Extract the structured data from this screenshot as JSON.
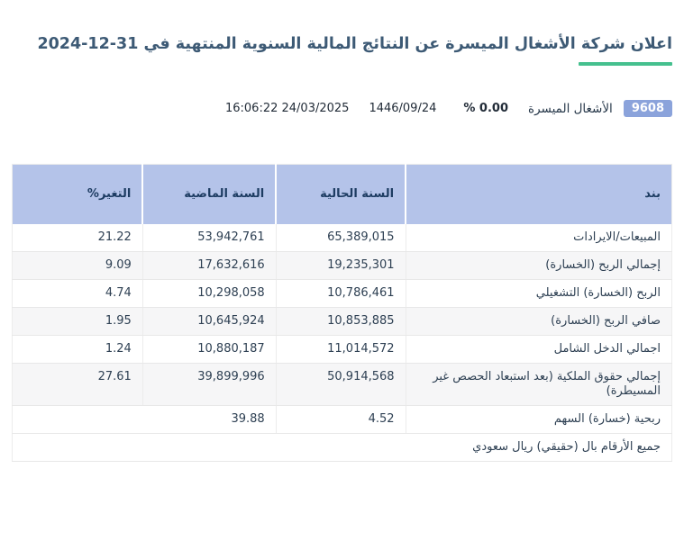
{
  "header": {
    "title": "اعلان شركة الأشغال الميسرة عن النتائج المالية السنوية المنتهية في 31-12-2024"
  },
  "info_bar": {
    "symbol": "9608",
    "company": "الأشغال الميسرة",
    "change_percent": "% 0.00",
    "hijri_date": "1446/09/24",
    "datetime": "16:06:22 24/03/2025"
  },
  "table": {
    "columns": {
      "item": "بند",
      "current_year": "السنة الحالية",
      "previous_year": "السنة الماضية",
      "change_percent": "التغير%"
    },
    "rows": [
      {
        "item": "المبيعات/الايرادات",
        "current": "65,389,015",
        "previous": "53,942,761",
        "change": "21.22"
      },
      {
        "item": "إجمالي الربح (الخسارة)",
        "current": "19,235,301",
        "previous": "17,632,616",
        "change": "9.09"
      },
      {
        "item": "الربح (الخسارة) التشغيلي",
        "current": "10,786,461",
        "previous": "10,298,058",
        "change": "4.74"
      },
      {
        "item": "صافي الربح (الخسارة)",
        "current": "10,853,885",
        "previous": "10,645,924",
        "change": "1.95"
      },
      {
        "item": "اجمالي الدخل الشامل",
        "current": "11,014,572",
        "previous": "10,880,187",
        "change": "1.24"
      },
      {
        "item": "إجمالي حقوق الملكية (بعد استبعاد الحصص غير المسيطرة)",
        "current": "50,914,568",
        "previous": "39,899,996",
        "change": "27.61"
      },
      {
        "item": "ربحية (خسارة) السهم",
        "current": "4.52",
        "previous": "39.88",
        "change": ""
      }
    ],
    "footnote": "جميع الأرقام بال (حقيقي) ريال سعودي"
  },
  "colors": {
    "accent_green": "#45c08e",
    "number_green": "#23a45a",
    "header_bg": "#b4c3e9",
    "badge_bg": "#8ba3db",
    "title_color": "#3d5a75"
  }
}
